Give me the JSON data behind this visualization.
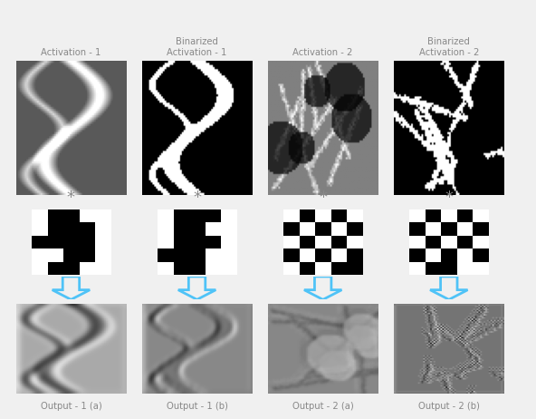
{
  "titles_top": [
    "Activation - 1",
    "Binarized\nActivation - 1",
    "Activation - 2",
    "Binarized\nActivation - 2"
  ],
  "titles_bottom": [
    "Output - 1 (a)",
    "Output - 1 (b)",
    "Output - 2 (a)",
    "Output - 2 (b)"
  ],
  "title_color": "#888888",
  "arrow_color": "#4FC3F7",
  "asterisk_color": "#888888",
  "background_color": "#f0f0f0",
  "fig_width": 5.92,
  "fig_height": 4.62
}
